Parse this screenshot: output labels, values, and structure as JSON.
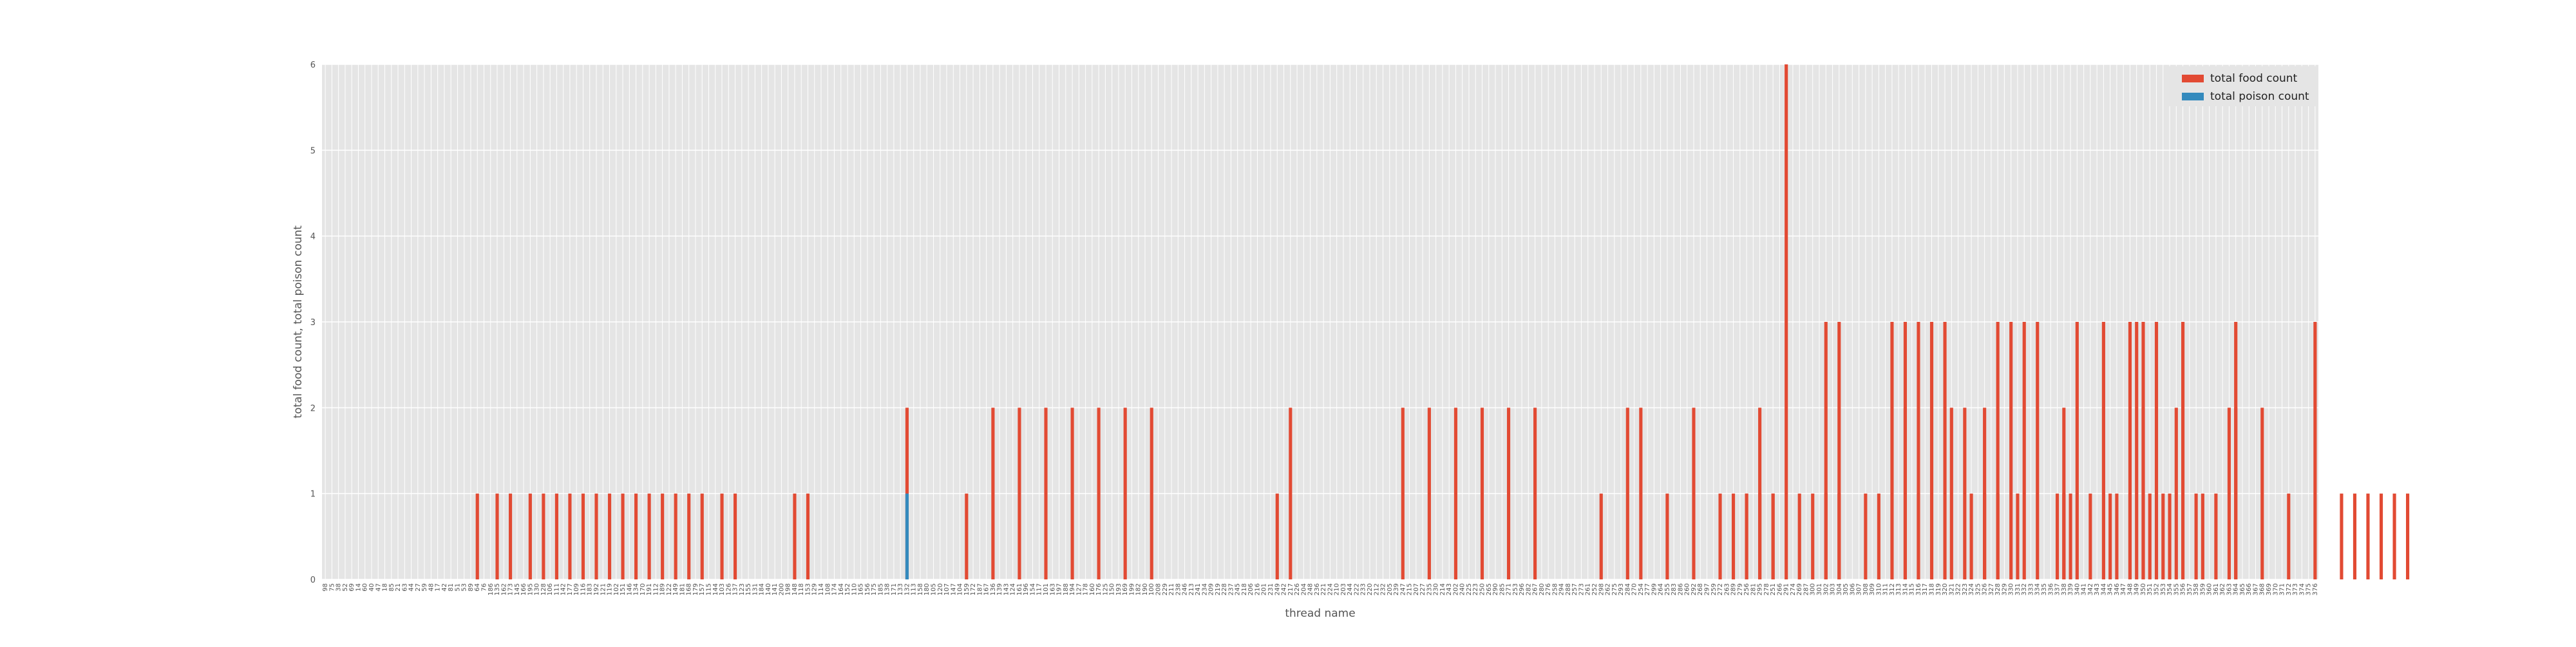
{
  "chart_data": {
    "type": "bar",
    "title": "",
    "xlabel": "thread name",
    "ylabel": "total food count, total poison count",
    "ylim": [
      0,
      6
    ],
    "yticks": [
      0,
      1,
      2,
      3,
      4,
      5,
      6
    ],
    "category_count": 302,
    "grid": true,
    "legend_placement": "top-right",
    "series": [
      {
        "name": "total food count",
        "color": "#e24a33",
        "values": [
          0,
          0,
          0,
          0,
          0,
          0,
          0,
          0,
          0,
          0,
          0,
          0,
          0,
          0,
          0,
          0,
          0,
          0,
          0,
          0,
          0,
          0,
          0,
          1,
          0,
          0,
          1,
          0,
          1,
          0,
          0,
          1,
          0,
          1,
          0,
          1,
          0,
          1,
          0,
          1,
          0,
          1,
          0,
          1,
          0,
          1,
          0,
          1,
          0,
          1,
          0,
          1,
          0,
          1,
          0,
          1,
          0,
          1,
          0,
          0,
          1,
          0,
          1,
          0,
          0,
          0,
          0,
          0,
          0,
          0,
          0,
          1,
          0,
          1,
          0,
          0,
          0,
          0,
          0,
          0,
          0,
          0,
          0,
          0,
          0,
          0,
          0,
          0,
          2,
          0,
          0,
          0,
          0,
          0,
          0,
          0,
          0,
          1,
          0,
          0,
          0,
          2,
          0,
          0,
          0,
          2,
          0,
          0,
          0,
          2,
          0,
          0,
          0,
          2,
          0,
          0,
          0,
          2,
          0,
          0,
          0,
          2,
          0,
          0,
          0,
          2,
          0,
          0,
          0,
          0,
          0,
          0,
          0,
          0,
          0,
          0,
          0,
          0,
          0,
          0,
          0,
          0,
          0,
          0,
          1,
          0,
          2,
          0,
          0,
          0,
          0,
          0,
          0,
          0,
          0,
          0,
          0,
          0,
          0,
          0,
          0,
          0,
          0,
          2,
          0,
          0,
          0,
          2,
          0,
          0,
          0,
          2,
          0,
          0,
          0,
          2,
          0,
          0,
          0,
          2,
          0,
          0,
          0,
          2,
          0,
          0,
          0,
          0,
          0,
          0,
          0,
          0,
          0,
          1,
          0,
          0,
          0,
          2,
          0,
          2,
          0,
          0,
          0,
          1,
          0,
          0,
          0,
          2,
          0,
          0,
          0,
          1,
          0,
          0,
          0,
          1,
          0,
          1,
          0,
          1,
          0,
          0,
          0,
          0,
          0,
          1,
          0,
          3,
          0,
          3,
          0,
          0,
          0,
          1,
          0,
          0,
          0,
          3,
          0,
          3,
          0,
          3,
          0,
          3,
          0,
          3,
          0,
          0,
          0,
          0,
          0,
          2,
          0,
          3,
          0,
          3,
          0,
          3,
          0,
          3,
          0,
          0,
          0,
          2,
          0,
          3,
          0,
          1,
          0,
          3,
          0,
          1,
          0,
          3,
          0,
          3,
          0,
          3,
          0,
          1,
          0,
          3,
          0,
          1,
          0,
          0,
          0,
          0,
          0,
          3,
          0,
          0,
          0,
          2,
          0,
          0,
          0,
          1,
          0,
          0,
          0,
          3,
          0,
          0,
          0,
          1,
          0,
          1,
          0,
          1,
          0,
          1,
          0,
          1,
          0,
          1
        ]
      },
      {
        "name": "total poison count",
        "color": "#348abd",
        "values": [
          0,
          0,
          0,
          0,
          0,
          0,
          0,
          0,
          0,
          0,
          0,
          0,
          0,
          0,
          0,
          0,
          0,
          0,
          0,
          0,
          0,
          0,
          0,
          0,
          0,
          0,
          0,
          0,
          0,
          0,
          0,
          0,
          0,
          0,
          0,
          0,
          0,
          0,
          0,
          0,
          0,
          0,
          0,
          0,
          0,
          0,
          0,
          0,
          0,
          0,
          0,
          0,
          0,
          0,
          0,
          0,
          0,
          0,
          0,
          0,
          0,
          0,
          0,
          0,
          0,
          0,
          0,
          0,
          0,
          0,
          0,
          0,
          0,
          0,
          0,
          0,
          0,
          0,
          0,
          0,
          0,
          0,
          0,
          0,
          0,
          0,
          0,
          0,
          1,
          0,
          0,
          0,
          0,
          0,
          0,
          0,
          0,
          0,
          0,
          0,
          0,
          0,
          0,
          0,
          0,
          0,
          0,
          0,
          0,
          0,
          0,
          0,
          0,
          0,
          0,
          0,
          0,
          0,
          0,
          0,
          0,
          0,
          0,
          0,
          0,
          0,
          0,
          0,
          0,
          0,
          0,
          0,
          0,
          0,
          0,
          0,
          0,
          0,
          0,
          0,
          0,
          0,
          0,
          0,
          0,
          0,
          0,
          0,
          0,
          0,
          0,
          0,
          0,
          0,
          0,
          0,
          0,
          0,
          0,
          0,
          0,
          0,
          0,
          0,
          0,
          0,
          0,
          0,
          0,
          0,
          0,
          0,
          0,
          0,
          0,
          0,
          0,
          0,
          0,
          0,
          0,
          0,
          0,
          0,
          0,
          0,
          0,
          0,
          0,
          0,
          0,
          0,
          0,
          0,
          0,
          0,
          0,
          0,
          0,
          0,
          0,
          0,
          0,
          0,
          0,
          0,
          0,
          0,
          0,
          0,
          0,
          0,
          0,
          0,
          0,
          0,
          0,
          0,
          0,
          0,
          0,
          0,
          0,
          0,
          0,
          0,
          0,
          0,
          0,
          0,
          0,
          0,
          0,
          0,
          0,
          0,
          0,
          0,
          0,
          0,
          0,
          0,
          0,
          0,
          0,
          0,
          0,
          0,
          0,
          0,
          0,
          0,
          0,
          0,
          0,
          0,
          0,
          0,
          0,
          0,
          0,
          0,
          0,
          0,
          0,
          0,
          0,
          0,
          0,
          0,
          0,
          0,
          0,
          0,
          0,
          0,
          0,
          0,
          0,
          0,
          0,
          0,
          0,
          0,
          0,
          0,
          0,
          0,
          0,
          0,
          0,
          0,
          0,
          0,
          0,
          0,
          0,
          0,
          0,
          0,
          0,
          0,
          0,
          0,
          0,
          0,
          0,
          0,
          0,
          0,
          0,
          0,
          0,
          0,
          0,
          0,
          0,
          0,
          0,
          0,
          0,
          0,
          0,
          0,
          0,
          0,
          0,
          0
        ]
      }
    ],
    "extra_bars": [
      {
        "series": 0,
        "position": 213,
        "value": 1
      },
      {
        "series": 0,
        "position": 215,
        "value": 1
      },
      {
        "series": 0,
        "position": 217,
        "value": 2
      },
      {
        "series": 0,
        "position": 219,
        "value": 1
      },
      {
        "series": 0,
        "position": 221,
        "value": 6
      },
      {
        "series": 0,
        "position": 223,
        "value": 1
      },
      {
        "series": 0,
        "position": 227,
        "value": 1
      },
      {
        "series": 0,
        "position": 229,
        "value": 1
      },
      {
        "series": 0,
        "position": 235,
        "value": 1
      },
      {
        "series": 0,
        "position": 239,
        "value": 2
      },
      {
        "series": 0,
        "position": 241,
        "value": 1
      },
      {
        "series": 0,
        "position": 246,
        "value": 2
      },
      {
        "series": 0,
        "position": 248,
        "value": 2
      },
      {
        "series": 0,
        "position": 249,
        "value": 1
      },
      {
        "series": 0,
        "position": 251,
        "value": 1
      },
      {
        "series": 0,
        "position": 253,
        "value": 1
      },
      {
        "series": 0,
        "position": 256,
        "value": 1
      },
      {
        "series": 0,
        "position": 262,
        "value": 1
      },
      {
        "series": 0,
        "position": 263,
        "value": 1
      },
      {
        "series": 0,
        "position": 264,
        "value": 1
      },
      {
        "series": 0,
        "position": 270,
        "value": 1
      },
      {
        "series": 0,
        "position": 273,
        "value": 1
      },
      {
        "series": 0,
        "position": 274,
        "value": 3
      },
      {
        "series": 0,
        "position": 275,
        "value": 2
      },
      {
        "series": 0,
        "position": 276,
        "value": 1
      },
      {
        "series": 0,
        "position": 278,
        "value": 1
      },
      {
        "series": 0,
        "position": 280,
        "value": 2
      },
      {
        "series": 0,
        "position": 284,
        "value": 1
      },
      {
        "series": 0,
        "position": 286,
        "value": 1
      },
      {
        "series": 0,
        "position": 288,
        "value": 2
      },
      {
        "series": 0,
        "position": 289,
        "value": 2
      }
    ],
    "x_tick_labels": [
      "98",
      "75",
      "38",
      "52",
      "69",
      "14",
      "60",
      "40",
      "47",
      "18",
      "85",
      "21",
      "63",
      "44",
      "27",
      "59",
      "48",
      "17",
      "42",
      "81",
      "51",
      "53",
      "89",
      "64",
      "76",
      "186",
      "135",
      "162",
      "173",
      "145",
      "166",
      "195",
      "130",
      "128",
      "106",
      "111",
      "142",
      "177",
      "109",
      "116",
      "183",
      "192",
      "121",
      "119",
      "102",
      "151",
      "146",
      "134",
      "170",
      "191",
      "112",
      "189",
      "122",
      "149",
      "181",
      "168",
      "179",
      "157",
      "115",
      "144",
      "103",
      "126",
      "137",
      "123",
      "155",
      "131",
      "184",
      "140",
      "141",
      "200",
      "198",
      "148",
      "118",
      "153",
      "129",
      "114",
      "108",
      "174",
      "164",
      "152",
      "110",
      "165",
      "156",
      "175",
      "185",
      "138",
      "171",
      "133",
      "132",
      "113",
      "158",
      "180",
      "105",
      "120",
      "107",
      "147",
      "104",
      "159",
      "172",
      "187",
      "167",
      "136",
      "139",
      "143",
      "124",
      "161",
      "196",
      "154",
      "117",
      "101",
      "163",
      "197",
      "188",
      "194",
      "127",
      "178",
      "160",
      "176",
      "125",
      "150",
      "193",
      "169",
      "199",
      "182",
      "190",
      "100",
      "208",
      "229",
      "211",
      "238",
      "246",
      "213",
      "241",
      "234",
      "209",
      "219",
      "228",
      "237",
      "245",
      "218",
      "206",
      "216",
      "201",
      "231",
      "249",
      "242",
      "217",
      "226",
      "204",
      "248",
      "236",
      "221",
      "224",
      "210",
      "203",
      "244",
      "222",
      "233",
      "220",
      "212",
      "232",
      "205",
      "239",
      "247",
      "215",
      "207",
      "227",
      "235",
      "230",
      "214",
      "243",
      "202",
      "240",
      "225",
      "223",
      "250",
      "265",
      "290",
      "285",
      "271",
      "253",
      "296",
      "282",
      "267",
      "280",
      "276",
      "258",
      "294",
      "288",
      "257",
      "273",
      "261",
      "252",
      "298",
      "262",
      "275",
      "293",
      "284",
      "270",
      "254",
      "277",
      "299",
      "264",
      "255",
      "283",
      "286",
      "260",
      "292",
      "268",
      "297",
      "259",
      "272",
      "263",
      "289",
      "279",
      "256",
      "281",
      "295",
      "278",
      "251",
      "266",
      "291",
      "274",
      "269",
      "287",
      "300",
      "301",
      "302",
      "303",
      "304",
      "305",
      "306",
      "307",
      "308",
      "309",
      "310",
      "311",
      "312",
      "313",
      "314",
      "315",
      "316",
      "317",
      "318",
      "319",
      "320",
      "321",
      "322",
      "323",
      "324",
      "325",
      "326",
      "327",
      "328",
      "329",
      "330",
      "331",
      "332",
      "333",
      "334",
      "335",
      "336",
      "337",
      "338",
      "339",
      "340",
      "341",
      "342",
      "343",
      "344",
      "345",
      "346",
      "347",
      "348",
      "349",
      "350",
      "351",
      "352",
      "353",
      "354",
      "355",
      "356",
      "357",
      "358",
      "359",
      "360",
      "361",
      "362",
      "363",
      "364",
      "365",
      "366",
      "367",
      "368",
      "369",
      "370",
      "371",
      "372",
      "373",
      "374",
      "375",
      "376",
      "377",
      "378",
      "379",
      "380",
      "381",
      "382",
      "383",
      "384",
      "385",
      "386",
      "387",
      "388",
      "389",
      "390",
      "391",
      "392",
      "393",
      "394",
      "395",
      "396",
      "397",
      "398",
      "399",
      "400",
      "401"
    ]
  }
}
